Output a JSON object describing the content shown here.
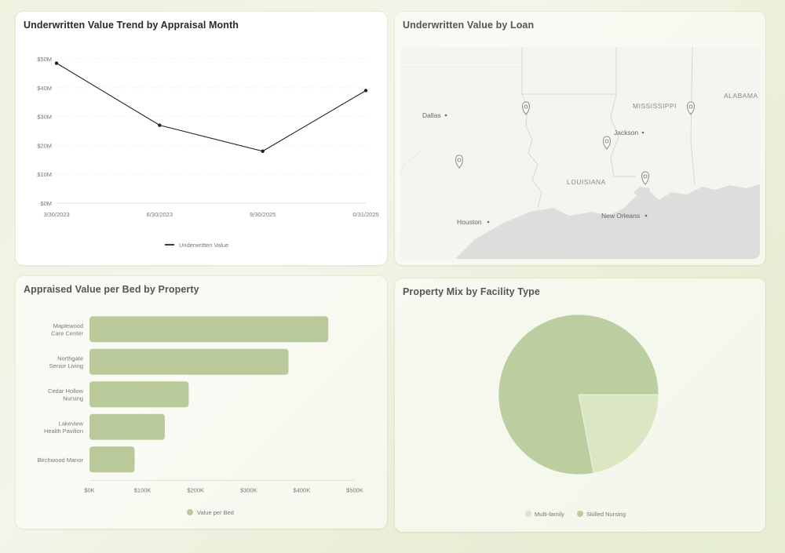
{
  "panels": {
    "trend": {
      "title": "Underwritten Value Trend by Appraisal Month"
    },
    "map": {
      "title": "Underwritten Value by Loan"
    },
    "bars": {
      "title": "Appraised Value per Bed by Property"
    },
    "pie": {
      "title": "Property Mix by Facility Type"
    }
  },
  "chart_data": [
    {
      "type": "line",
      "x": [
        "3/30/2023",
        "6/30/2023",
        "9/30/2025",
        "0/31/2025"
      ],
      "series": [
        {
          "name": "Underwritten Value",
          "values": [
            48.5,
            27,
            18,
            39
          ]
        }
      ],
      "yticks": [
        "$0M",
        "$10M",
        "$20M",
        "$30M",
        "$40M",
        "$50M"
      ],
      "ylim": [
        0,
        50
      ],
      "grid": true,
      "legend": "bottom",
      "color": "#222222"
    },
    {
      "type": "bar",
      "orientation": "horizontal",
      "categories": [
        [
          "Maplewood",
          "Care Center"
        ],
        [
          "Northgate",
          "Senior Living"
        ],
        [
          "Cedar Hollow",
          "Nursing"
        ],
        [
          "Lakeview",
          "Health Pavilion"
        ],
        [
          "Birchwood Manor"
        ]
      ],
      "series": [
        {
          "name": "Value per Bed",
          "values": [
            450,
            375,
            187,
            142,
            85
          ]
        }
      ],
      "xticks": [
        "$0K",
        "$100K",
        "$200K",
        "$300K",
        "$400K",
        "$500K"
      ],
      "xlim": [
        0,
        500
      ],
      "legend": "bottom",
      "color": "#b9c99a"
    },
    {
      "type": "pie",
      "slices": [
        {
          "name": "Multi-family",
          "value": 22,
          "color": "#dbe6c2"
        },
        {
          "name": "Skilled Nursing",
          "value": 78,
          "color": "#bccda0"
        }
      ],
      "legend": "bottom"
    }
  ],
  "map": {
    "cities": [
      "Dallas",
      "Houston",
      "Jackson",
      "New Orleans"
    ],
    "states": [
      "MISSISSIPPI",
      "ALABAMA",
      "LOUISIANA"
    ],
    "markers": 6,
    "land_color": "#f3f3ef",
    "water_color": "#dcdedb"
  }
}
